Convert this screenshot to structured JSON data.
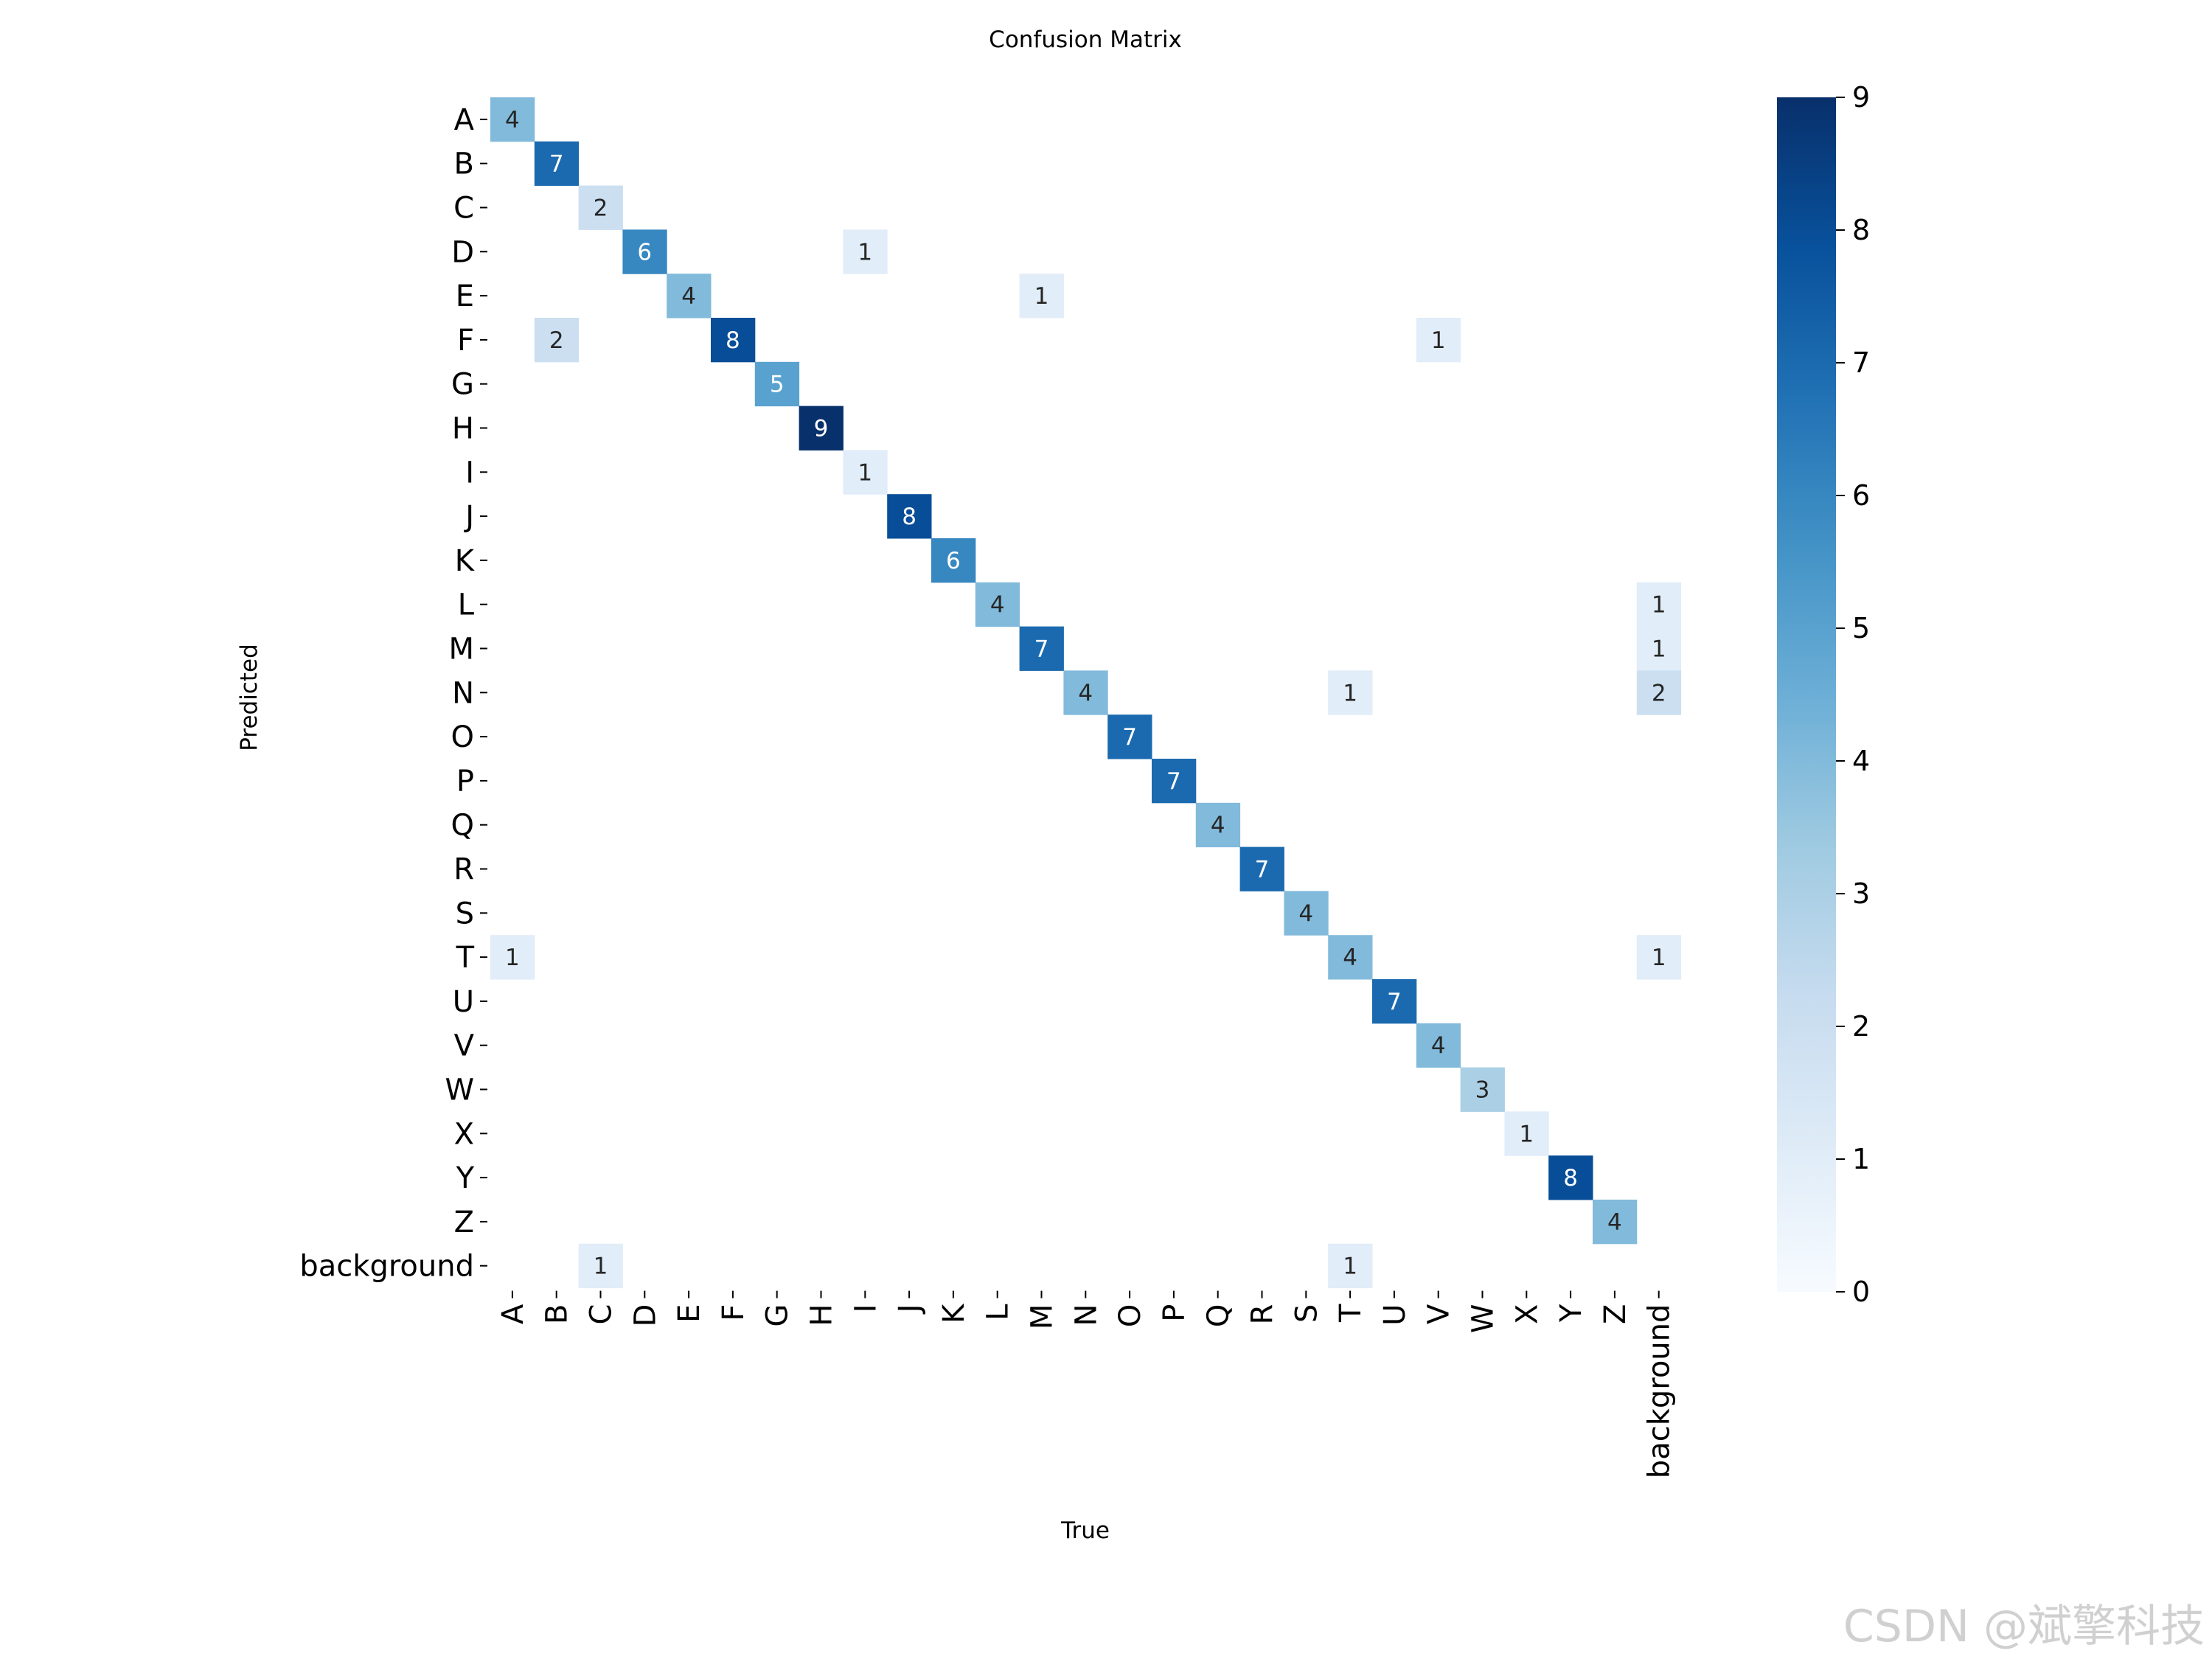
{
  "chart_data": {
    "type": "heatmap",
    "title": "Confusion Matrix",
    "xlabel": "True",
    "ylabel": "Predicted",
    "x_labels": [
      "A",
      "B",
      "C",
      "D",
      "E",
      "F",
      "G",
      "H",
      "I",
      "J",
      "K",
      "L",
      "M",
      "N",
      "O",
      "P",
      "Q",
      "R",
      "S",
      "T",
      "U",
      "V",
      "W",
      "X",
      "Y",
      "Z",
      "background"
    ],
    "y_labels": [
      "A",
      "B",
      "C",
      "D",
      "E",
      "F",
      "G",
      "H",
      "I",
      "J",
      "K",
      "L",
      "M",
      "N",
      "O",
      "P",
      "Q",
      "R",
      "S",
      "T",
      "U",
      "V",
      "W",
      "X",
      "Y",
      "Z",
      "background"
    ],
    "cells": [
      {
        "row": 0,
        "col": 0,
        "value": 4
      },
      {
        "row": 1,
        "col": 1,
        "value": 7
      },
      {
        "row": 2,
        "col": 2,
        "value": 2
      },
      {
        "row": 3,
        "col": 3,
        "value": 6
      },
      {
        "row": 3,
        "col": 8,
        "value": 1
      },
      {
        "row": 4,
        "col": 4,
        "value": 4
      },
      {
        "row": 4,
        "col": 12,
        "value": 1
      },
      {
        "row": 5,
        "col": 1,
        "value": 2
      },
      {
        "row": 5,
        "col": 5,
        "value": 8
      },
      {
        "row": 5,
        "col": 21,
        "value": 1
      },
      {
        "row": 6,
        "col": 6,
        "value": 5
      },
      {
        "row": 7,
        "col": 7,
        "value": 9
      },
      {
        "row": 8,
        "col": 8,
        "value": 1
      },
      {
        "row": 9,
        "col": 9,
        "value": 8
      },
      {
        "row": 10,
        "col": 10,
        "value": 6
      },
      {
        "row": 11,
        "col": 11,
        "value": 4
      },
      {
        "row": 11,
        "col": 26,
        "value": 1
      },
      {
        "row": 12,
        "col": 12,
        "value": 7
      },
      {
        "row": 12,
        "col": 26,
        "value": 1
      },
      {
        "row": 13,
        "col": 13,
        "value": 4
      },
      {
        "row": 13,
        "col": 19,
        "value": 1
      },
      {
        "row": 13,
        "col": 26,
        "value": 2
      },
      {
        "row": 14,
        "col": 14,
        "value": 7
      },
      {
        "row": 15,
        "col": 15,
        "value": 7
      },
      {
        "row": 16,
        "col": 16,
        "value": 4
      },
      {
        "row": 17,
        "col": 17,
        "value": 7
      },
      {
        "row": 18,
        "col": 18,
        "value": 4
      },
      {
        "row": 19,
        "col": 0,
        "value": 1
      },
      {
        "row": 19,
        "col": 19,
        "value": 4
      },
      {
        "row": 19,
        "col": 26,
        "value": 1
      },
      {
        "row": 20,
        "col": 20,
        "value": 7
      },
      {
        "row": 21,
        "col": 21,
        "value": 4
      },
      {
        "row": 22,
        "col": 22,
        "value": 3
      },
      {
        "row": 23,
        "col": 23,
        "value": 1
      },
      {
        "row": 24,
        "col": 24,
        "value": 8
      },
      {
        "row": 25,
        "col": 25,
        "value": 4
      },
      {
        "row": 26,
        "col": 2,
        "value": 1
      },
      {
        "row": 26,
        "col": 19,
        "value": 1
      }
    ],
    "colorbar": {
      "min": 0,
      "max": 9,
      "ticks": [
        0,
        1,
        2,
        3,
        4,
        5,
        6,
        7,
        8,
        9
      ],
      "colormap": "Blues",
      "color_low": "#f7fbff",
      "color_high": "#08306b"
    },
    "grid": false
  },
  "watermark": "CSDN @斌擎科技"
}
